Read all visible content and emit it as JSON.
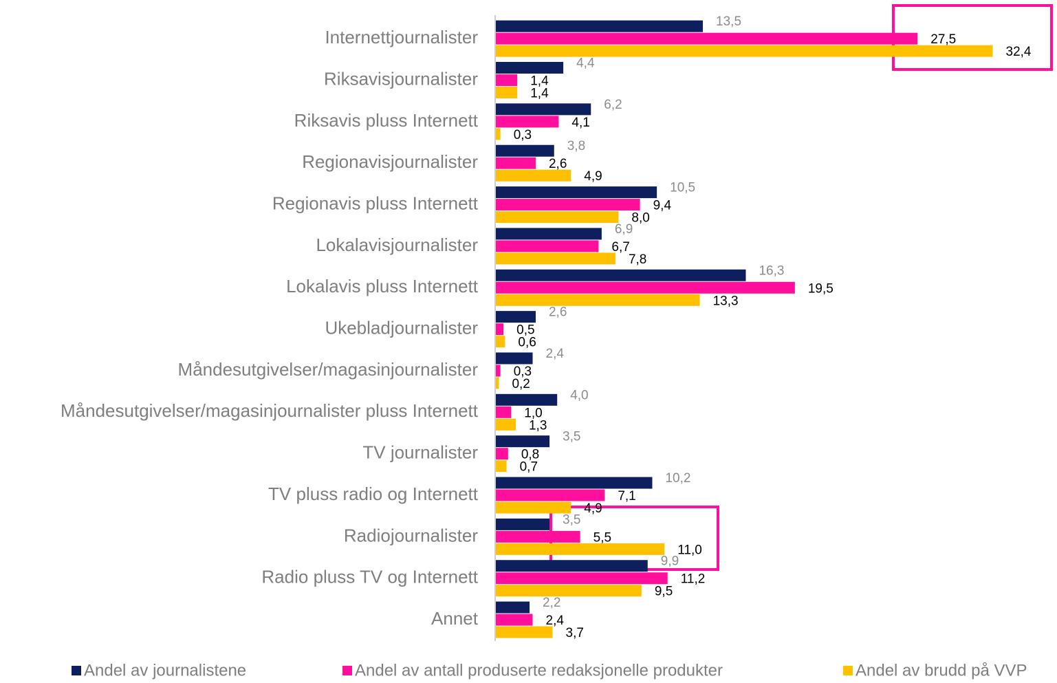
{
  "chart_data": {
    "type": "bar",
    "orientation": "horizontal",
    "categories": [
      "Internettjournalister",
      "Riksavisjournalister",
      "Riksavis pluss Internett",
      "Regionavisjournalister",
      "Regionavis pluss Internett",
      "Lokalavisjournalister",
      "Lokalavis pluss Internett",
      "Ukebladjournalister",
      "Måndesutgivelser/magasinjournalister",
      "Måndesutgivelser/magasinjournalister pluss Internett",
      "TV journalister",
      "TV pluss radio og Internett",
      "Radiojournalister",
      "Radio pluss TV og Internett",
      "Annet"
    ],
    "series": [
      {
        "name": "Andel av journalistene",
        "color": "#0d1f5c",
        "values": [
          13.5,
          4.4,
          6.2,
          3.8,
          10.5,
          6.9,
          16.3,
          2.6,
          2.4,
          4.0,
          3.5,
          10.2,
          3.5,
          9.9,
          2.2
        ],
        "value_labels": [
          "13,5",
          "4,4",
          "6,2",
          "3,8",
          "10,5",
          "6,9",
          "16,3",
          "2,6",
          "2,4",
          "4,0",
          "3,5",
          "10,2",
          "3,5",
          "9,9",
          "2,2"
        ]
      },
      {
        "name": "Andel av antall produserte redaksjonelle produkter",
        "color": "#ff0f9b",
        "values": [
          27.5,
          1.4,
          4.1,
          2.6,
          9.4,
          6.7,
          19.5,
          0.5,
          0.3,
          1.0,
          0.8,
          7.1,
          5.5,
          11.2,
          2.4
        ],
        "value_labels": [
          "27,5",
          "1,4",
          "4,1",
          "2,6",
          "9,4",
          "6,7",
          "19,5",
          "0,5",
          "0,3",
          "1,0",
          "0,8",
          "7,1",
          "5,5",
          "11,2",
          "2,4"
        ]
      },
      {
        "name": "Andel av brudd på VVP",
        "color": "#ffc000",
        "values": [
          32.4,
          1.4,
          0.3,
          4.9,
          8.0,
          7.8,
          13.3,
          0.6,
          0.2,
          1.3,
          0.7,
          4.9,
          11.0,
          9.5,
          3.7
        ],
        "value_labels": [
          "32,4",
          "1,4",
          "0,3",
          "4,9",
          "8,0",
          "7,8",
          "13,3",
          "0,6",
          "0,2",
          "1,3",
          "0,7",
          "4,9",
          "11,0",
          "9,5",
          "3,7"
        ]
      }
    ],
    "legend": "bottom"
  }
}
